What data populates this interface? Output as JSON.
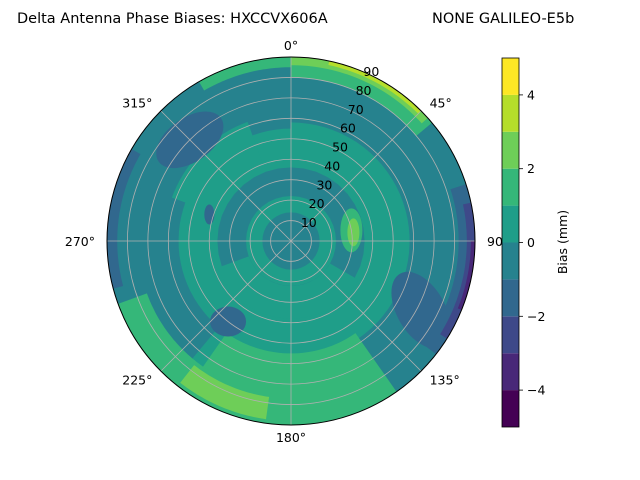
{
  "chart_data": {
    "type": "polar-contour",
    "title_left": "Delta Antenna Phase Biases: HXCCVX606A",
    "title_right": "NONE GALILEO-E5b",
    "radial_ticks": [
      10,
      20,
      30,
      40,
      50,
      60,
      70,
      80,
      90
    ],
    "angular_ticks": [
      "0°",
      "45°",
      "90°",
      "135°",
      "180°",
      "225°",
      "270°",
      "315°"
    ],
    "radial_range": [
      0,
      90
    ],
    "grid": true,
    "colorbar": {
      "label": "Bias (mm)",
      "range": [
        -5,
        5
      ],
      "levels": [
        -5,
        -4,
        -3,
        -2,
        -1,
        0,
        1,
        2,
        3,
        4,
        5
      ],
      "ticks": [
        "−4",
        "−2",
        "0",
        "2",
        "4"
      ],
      "colors": [
        "#440154",
        "#482878",
        "#3e4989",
        "#31688e",
        "#26828e",
        "#1f9e89",
        "#35b779",
        "#6ece58",
        "#b5de2b",
        "#fde725"
      ]
    },
    "regions": [
      {
        "band": "-1 to 0",
        "where": "outer ring 50–90 elevation, most azimuths"
      },
      {
        "band": "0 to 1",
        "where": "center and inner rings, broad band"
      },
      {
        "band": "1 to 2",
        "where": "south sector 150°–210° at 60–90"
      },
      {
        "band": "2 to 3",
        "where": "patch near 190°–215° at 80–88; patch near 75°–100° at 20–40; patch near 0°–45° at 85–90"
      },
      {
        "band": "3 to 4",
        "where": "rim near 15°–45° at 87–90"
      },
      {
        "band": "-2 to -1",
        "where": "patches near 300°–330° at 60–80, 210°–230° at 40–55, 100°–135° at 55–85"
      },
      {
        "band": "-4 to -2",
        "where": "east rim 80°–120° at 85–90"
      }
    ]
  }
}
